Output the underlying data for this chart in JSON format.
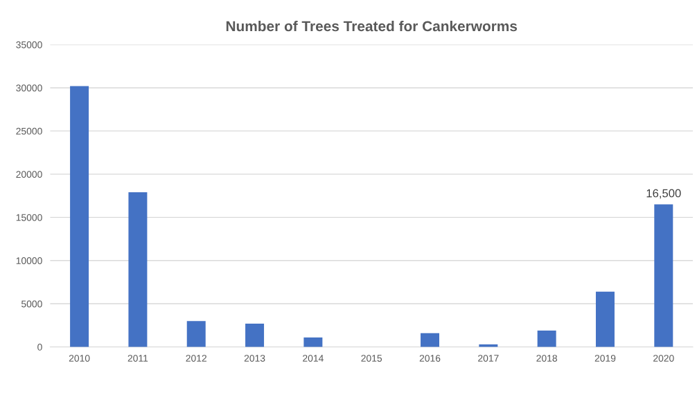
{
  "chart_data": {
    "type": "bar",
    "title": "Number of Trees Treated for Cankerworms",
    "categories": [
      "2010",
      "2011",
      "2012",
      "2013",
      "2014",
      "2015",
      "2016",
      "2017",
      "2018",
      "2019",
      "2020"
    ],
    "values": [
      30200,
      17900,
      3000,
      2700,
      1100,
      0,
      1600,
      300,
      1900,
      6400,
      16500
    ],
    "value_labels": [
      null,
      null,
      null,
      null,
      null,
      null,
      null,
      null,
      null,
      null,
      "16,500"
    ],
    "color": "#4472c4",
    "ylim": [
      0,
      35000
    ],
    "yticks": [
      0,
      5000,
      10000,
      15000,
      20000,
      25000,
      30000,
      35000
    ],
    "grid": "y"
  }
}
